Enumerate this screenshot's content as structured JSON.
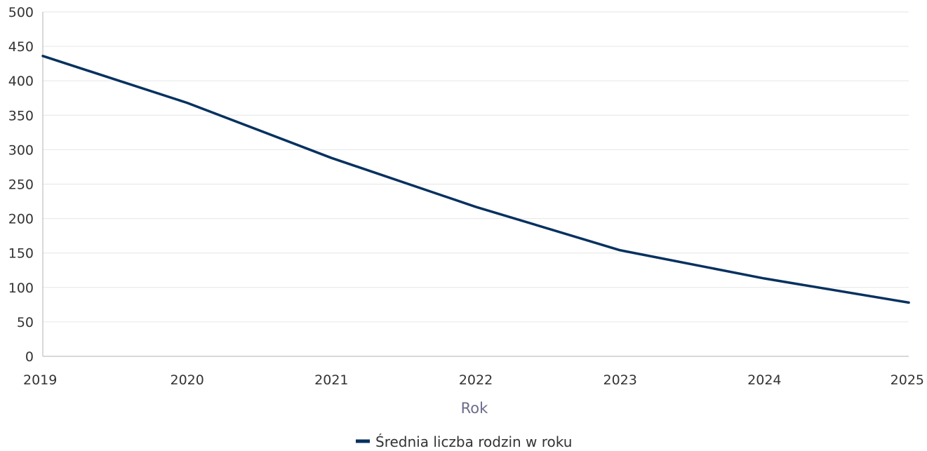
{
  "chart_data": {
    "type": "line",
    "title": "",
    "xlabel": "Rok",
    "ylabel": "",
    "x": [
      "2019",
      "2020",
      "2021",
      "2022",
      "2023",
      "2024",
      "2025"
    ],
    "ylim": [
      0,
      500
    ],
    "y_ticks": [
      "0",
      "50",
      "100",
      "150",
      "200",
      "250",
      "300",
      "350",
      "400",
      "450",
      "500"
    ],
    "grid": true,
    "legend_position": "bottom-center",
    "series": [
      {
        "name": "Średnia liczba rodzin w roku",
        "color": "#06315f",
        "values": [
          436,
          368,
          288,
          217,
          154,
          113,
          78
        ]
      }
    ]
  }
}
